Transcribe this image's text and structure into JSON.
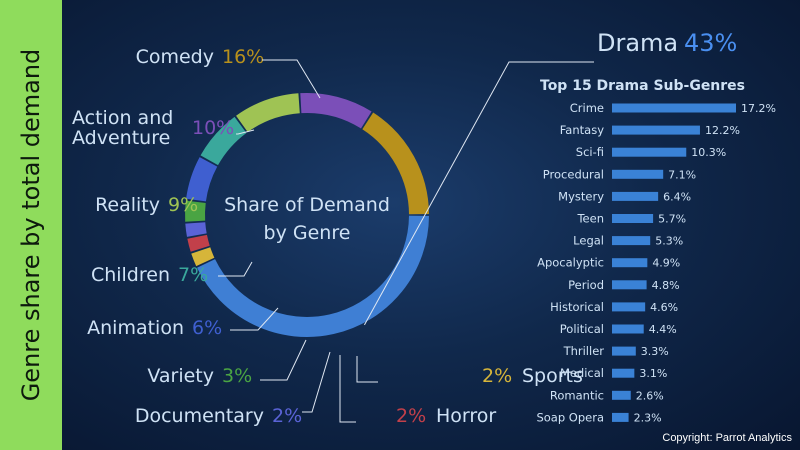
{
  "side_title": "Genre share by total demand",
  "copyright": "Copyright: Parrot Analytics",
  "colors": {
    "side_band": "#8fdc5c",
    "label_text": "#cfe2f5",
    "bar": "#3a82d6"
  },
  "chart_data": [
    {
      "type": "pie",
      "title": "Share of Demand by Genre",
      "title_lines": [
        "Share of Demand",
        "by Genre"
      ],
      "slices": [
        {
          "label": "Drama",
          "value": 43,
          "value_label": "43%",
          "color": "#3f7fd4"
        },
        {
          "label": "Sports",
          "value": 2,
          "value_label": "2%",
          "color": "#d6b53a"
        },
        {
          "label": "Horror",
          "value": 2,
          "value_label": "2%",
          "color": "#c2404a"
        },
        {
          "label": "Documentary",
          "value": 2,
          "value_label": "2%",
          "color": "#5a63d6"
        },
        {
          "label": "Variety",
          "value": 3,
          "value_label": "3%",
          "color": "#4aa443"
        },
        {
          "label": "Animation",
          "value": 6,
          "value_label": "6%",
          "color": "#3f5fd0"
        },
        {
          "label": "Children",
          "value": 7,
          "value_label": "7%",
          "color": "#3aa89c"
        },
        {
          "label": "Reality",
          "value": 9,
          "value_label": "9%",
          "color": "#9fc354"
        },
        {
          "label": "Action and Adventure",
          "value": 10,
          "value_label": "10%",
          "color": "#7b4fb8"
        },
        {
          "label": "Comedy",
          "value": 16,
          "value_label": "16%",
          "color": "#b8911c"
        }
      ]
    },
    {
      "type": "bar",
      "orientation": "horizontal",
      "title": "Top 15 Drama Sub-Genres",
      "categories": [
        "Crime",
        "Fantasy",
        "Sci-fi",
        "Procedural",
        "Mystery",
        "Teen",
        "Legal",
        "Apocalyptic",
        "Period",
        "Historical",
        "Political",
        "Thriller",
        "Medical",
        "Romantic",
        "Soap Opera"
      ],
      "values": [
        17.2,
        12.2,
        10.3,
        7.1,
        6.4,
        5.7,
        5.3,
        4.9,
        4.8,
        4.6,
        4.4,
        3.3,
        3.1,
        2.6,
        2.3
      ],
      "value_labels": [
        "17.2%",
        "12.2%",
        "10.3%",
        "7.1%",
        "6.4%",
        "5.7%",
        "5.3%",
        "4.9%",
        "4.8%",
        "4.6%",
        "4.4%",
        "3.3%",
        "3.1%",
        "2.6%",
        "2.3%"
      ],
      "xlim": [
        0,
        17.2
      ]
    }
  ]
}
